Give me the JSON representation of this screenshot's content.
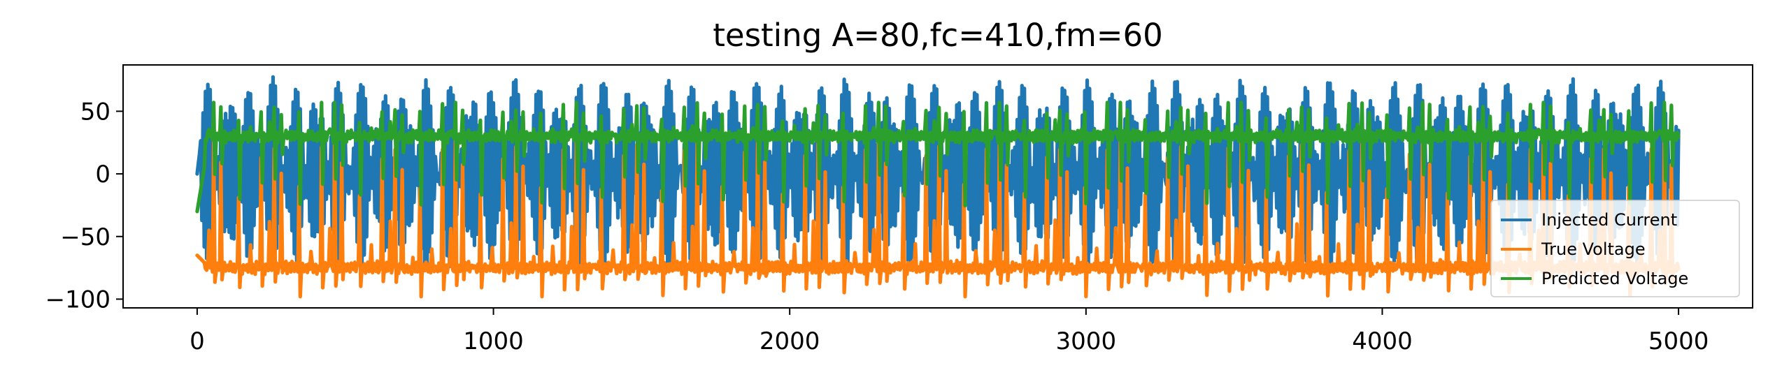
{
  "chart_data": {
    "type": "line",
    "title": "testing A=80,fc=410,fm=60",
    "xlabel": "",
    "ylabel": "",
    "xlim": [
      -250,
      5250
    ],
    "ylim": [
      -107,
      87
    ],
    "x_ticks": [
      0,
      1000,
      2000,
      3000,
      4000,
      5000
    ],
    "x_tick_labels": [
      "0",
      "1000",
      "2000",
      "3000",
      "4000",
      "5000"
    ],
    "y_ticks": [
      50,
      0,
      -50,
      -100
    ],
    "y_tick_labels": [
      "50",
      "0",
      "−50",
      "−100"
    ],
    "grid": false,
    "legend_position": "lower-right",
    "n_samples": 5000,
    "series": [
      {
        "name": "Injected Current",
        "color": "#1f77b4",
        "period_samples": 102,
        "shape": "modulated-oscillation",
        "min": -80,
        "max": 80,
        "x_start": 0,
        "x_end": 5000,
        "start_value": 0
      },
      {
        "name": "True Voltage",
        "color": "#ff7f0e",
        "period_samples": 102,
        "shape": "spike-train",
        "baseline": -75,
        "spike_peak": 30,
        "min": -98,
        "max": 30,
        "x_start": 0,
        "x_end": 5000,
        "start_value": -65
      },
      {
        "name": "Predicted Voltage",
        "color": "#2ca02c",
        "period_samples": 102,
        "shape": "spike-train",
        "baseline": 30,
        "spike_peak": 57,
        "min": -32,
        "max": 57,
        "x_start": 0,
        "x_end": 5000,
        "start_value": -30
      }
    ]
  }
}
